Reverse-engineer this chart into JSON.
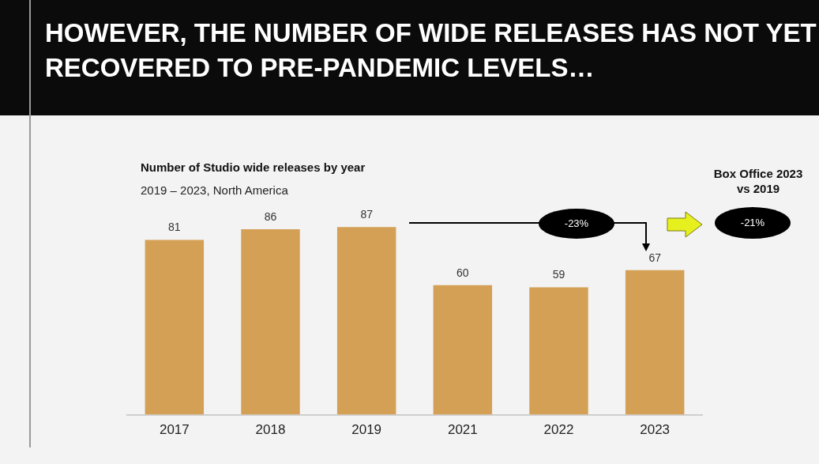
{
  "chart_data": {
    "type": "bar",
    "title": "HOWEVER, THE NUMBER OF WIDE RELEASES HAS NOT YET RECOVERED TO PRE-PANDEMIC LEVELS…",
    "subtitle": "Number of Studio wide releases by year",
    "categories": [
      "2017",
      "2018",
      "2019",
      "2021",
      "2022",
      "2023"
    ],
    "values": [
      81,
      86,
      87,
      60,
      59,
      67
    ],
    "color": "#d4a055",
    "data_labels": true,
    "annotations": [
      "2019 – 2023, North America",
      "-23%",
      "Box Office 2023 vs 2019",
      "-21%"
    ]
  }
}
